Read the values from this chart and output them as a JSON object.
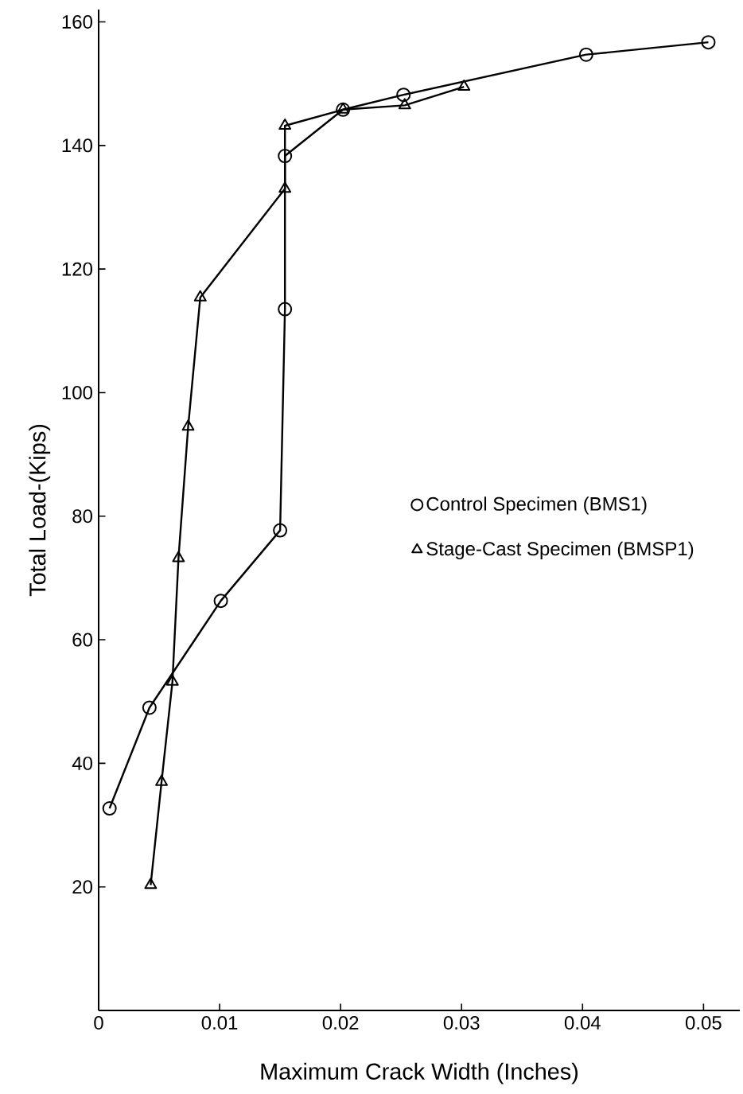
{
  "chart_data": {
    "type": "line",
    "xlabel": "Maximum Crack Width (Inches)",
    "ylabel": "Total Load-(Kips)",
    "xlim": [
      0,
      0.053
    ],
    "ylim": [
      0,
      162
    ],
    "xticks": [
      0,
      0.01,
      0.02,
      0.03,
      0.04,
      0.05
    ],
    "yticks": [
      20,
      40,
      60,
      80,
      100,
      120,
      140,
      160
    ],
    "legend": "right",
    "grid": false,
    "line_style": "solid",
    "series": [
      {
        "name": "Control Specimen (BMS1)",
        "color": "#000000",
        "marker": "circle",
        "x": [
          0.0009,
          0.0042,
          0.0101,
          0.015,
          0.0154,
          0.0154,
          0.0202,
          0.0252,
          0.0403,
          0.0504
        ],
        "values": [
          32.7,
          49,
          66.3,
          77.7,
          113.5,
          138.3,
          145.8,
          148.2,
          154.7,
          156.7
        ]
      },
      {
        "name": "Stage-Cast Specimen (BMSP1)",
        "color": "#000000",
        "marker": "triangle",
        "x": [
          0.0043,
          0.0052,
          0.0061,
          0.0066,
          0.0074,
          0.0084,
          0.0154,
          0.0154,
          0.0202,
          0.0253,
          0.0302
        ],
        "values": [
          20.3,
          37,
          53.2,
          73.2,
          94.5,
          115.4,
          133,
          143.2,
          145.8,
          146.5,
          149.5
        ]
      }
    ]
  }
}
